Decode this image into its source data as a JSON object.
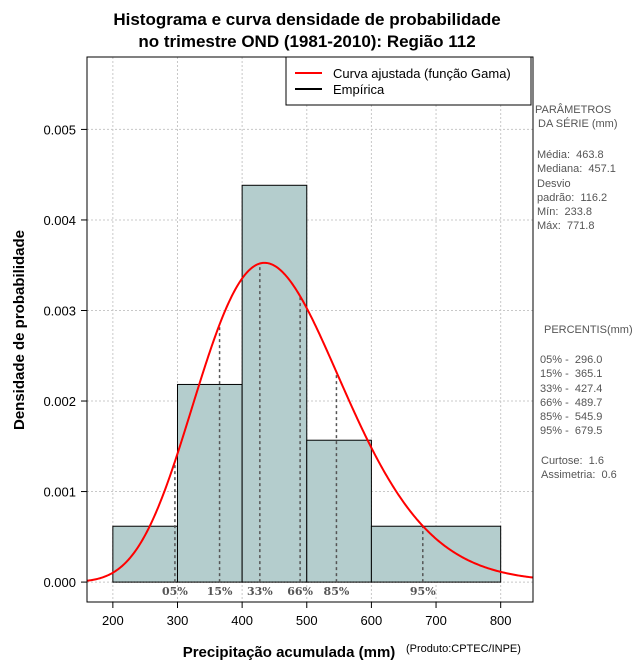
{
  "chart_data": {
    "type": "histogram",
    "title_lines": [
      "Histograma e curva densidade de probabilidade",
      "no trimestre OND (1981-2010): Região 112"
    ],
    "xlabel": "Precipitação acumulada (mm)",
    "ylabel": "Densidade de probabilidade",
    "credit": "(Produto:CPTEC/INPE)",
    "xlim": [
      160,
      850
    ],
    "ylim": [
      -0.00022,
      0.0058
    ],
    "x_ticks": [
      200,
      300,
      400,
      500,
      600,
      700,
      800
    ],
    "x_tick_labels": [
      "200",
      "300",
      "400",
      "500",
      "600",
      "700",
      "800"
    ],
    "y_ticks": [
      0.0,
      0.001,
      0.002,
      0.003,
      0.004,
      0.005
    ],
    "y_tick_labels": [
      "0.000",
      "0.001",
      "0.002",
      "0.003",
      "0.004",
      "0.005"
    ],
    "grid": true,
    "bins": [
      {
        "from": 200,
        "to": 300,
        "density": 0.000617
      },
      {
        "from": 300,
        "to": 400,
        "density": 0.002183
      },
      {
        "from": 400,
        "to": 500,
        "density": 0.004383
      },
      {
        "from": 500,
        "to": 600,
        "density": 0.001567
      },
      {
        "from": 600,
        "to": 800,
        "density": 0.000617
      }
    ],
    "bar_color": "#b4cdcd",
    "curve": {
      "name": "Curva ajustada (função Gama)",
      "distribution": "gamma",
      "mean": 463.8,
      "sd": 116.2,
      "color": "#ff0000"
    },
    "percentile_lines": [
      {
        "label": "05%",
        "value": 296.0
      },
      {
        "label": "15%",
        "value": 365.1
      },
      {
        "label": "33%",
        "value": 427.4
      },
      {
        "label": "66%",
        "value": 489.7
      },
      {
        "label": "85%",
        "value": 545.9
      },
      {
        "label": "95%",
        "value": 679.5
      }
    ],
    "legend": [
      {
        "label": "Curva ajustada (função Gama)",
        "color": "#ff0000"
      },
      {
        "label": "Empírica",
        "color": "#000000"
      }
    ],
    "legend_position": "top-right"
  },
  "stats_panel": {
    "params_title": "PARÂMETROS\n DA SÉRIE (mm)",
    "params_text": "Média:  463.8\nMediana:  457.1\nDesvio\npadrão:  116.2\nMín:  233.8\nMáx:  771.8",
    "pct_title": "PERCENTIS(mm)",
    "pct_text": "05% -  296.0\n15% -  365.1\n33% -  427.4\n66% -  489.7\n85% -  545.9\n95% -  679.5",
    "shape_text": "Curtose:  1.6\nAssimetria:  0.6"
  }
}
